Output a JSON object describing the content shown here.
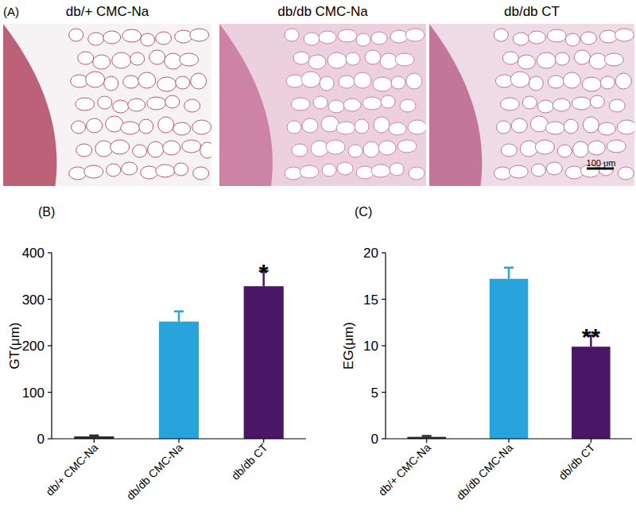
{
  "panel_label": "(A)",
  "images": [
    {
      "title": "db/+ CMC-Na"
    },
    {
      "title": "db/db CMC-Na"
    },
    {
      "title": "db/db CT"
    }
  ],
  "scale_bar_label": "100 μm",
  "chart_data": [
    {
      "type": "bar",
      "title": "(B)",
      "y_label": "GT(μm)",
      "categories": [
        "db/+ CMC-Na",
        "db/db CMC-Na",
        "db/db CT"
      ],
      "values": [
        5,
        252,
        328
      ],
      "errors": [
        2,
        22,
        33
      ],
      "colors": [
        "#2b2b2b",
        "#29a3dc",
        "#4a1766"
      ],
      "ylim": [
        0,
        400
      ],
      "yticks": [
        0,
        100,
        200,
        300,
        400
      ],
      "grid": false,
      "annotations": [
        {
          "text": "*",
          "category": "db/db CT"
        }
      ]
    },
    {
      "type": "bar",
      "title": "(C)",
      "y_label": "EG(μm)",
      "categories": [
        "db/+ CMC-Na",
        "db/db CMC-Na",
        "db/db CT"
      ],
      "values": [
        0.2,
        17.2,
        9.9
      ],
      "errors": [
        0.1,
        1.2,
        1.2
      ],
      "colors": [
        "#2b2b2b",
        "#29a3dc",
        "#4a1766"
      ],
      "ylim": [
        0,
        20
      ],
      "yticks": [
        0,
        5,
        10,
        15,
        20
      ],
      "grid": false,
      "annotations": [
        {
          "text": "**",
          "category": "db/db CT"
        }
      ]
    }
  ]
}
